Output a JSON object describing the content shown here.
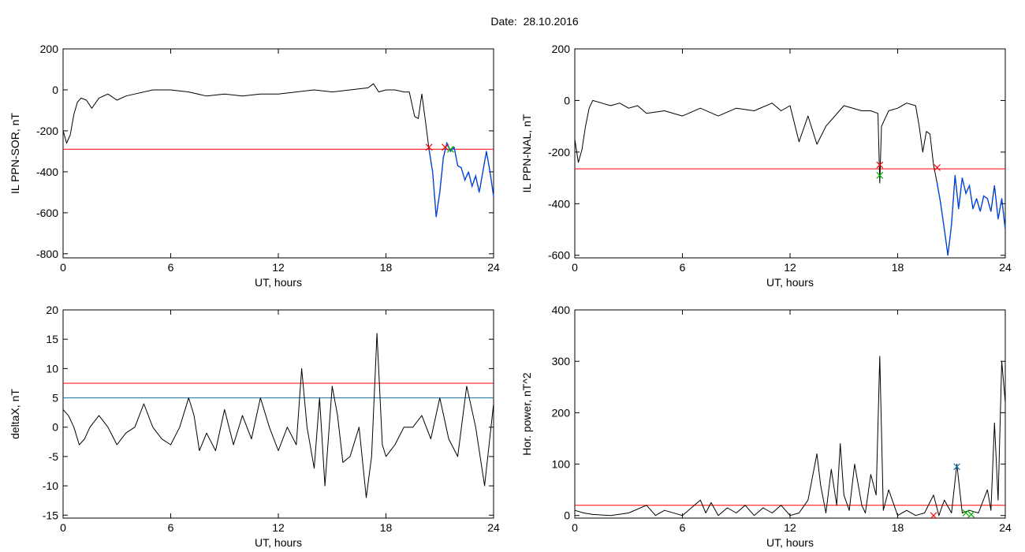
{
  "title": "Date:  28.10.2016",
  "colors": {
    "data": "#000000",
    "threshold_red": "#ff0000",
    "threshold_blue": "#1f77b4",
    "highlight": "#0050ff",
    "marker_green": "#00b000"
  },
  "chart_data": [
    {
      "type": "line",
      "xlabel": "UT, hours",
      "ylabel": "IL PPN-SOR, nT",
      "xlim": [
        0,
        24
      ],
      "ylim": [
        -820,
        200
      ],
      "xticks": [
        0,
        6,
        12,
        18,
        24
      ],
      "yticks": [
        -800,
        -600,
        -400,
        -200,
        0,
        200
      ],
      "yticklabels": [
        "-800",
        "-600",
        "-400",
        "-200",
        "0",
        "200"
      ],
      "hlines": [
        {
          "y": -290,
          "color": "red"
        }
      ],
      "series": [
        {
          "x": [
            0,
            0.2,
            0.4,
            0.6,
            0.8,
            1,
            1.3,
            1.6,
            2,
            2.5,
            3,
            3.5,
            4,
            5,
            6,
            7,
            8,
            9,
            10,
            11,
            12,
            13,
            14,
            15,
            16,
            17,
            17.3,
            17.6,
            18,
            18.5,
            19,
            19.3,
            19.6,
            19.8,
            20,
            20.2,
            20.4,
            20.6,
            20.8,
            21,
            21.2,
            21.4,
            21.6,
            21.8,
            22,
            22.2,
            22.4,
            22.6,
            22.8,
            23,
            23.2,
            23.4,
            23.6,
            23.8,
            24
          ],
          "y": [
            -200,
            -260,
            -220,
            -120,
            -60,
            -40,
            -50,
            -90,
            -40,
            -20,
            -50,
            -30,
            -20,
            0,
            0,
            -10,
            -30,
            -20,
            -30,
            -20,
            -20,
            -10,
            0,
            -10,
            0,
            10,
            30,
            -10,
            0,
            0,
            -10,
            -10,
            -130,
            -140,
            -20,
            -150,
            -290,
            -400,
            -620,
            -500,
            -330,
            -260,
            -300,
            -280,
            -370,
            -380,
            -440,
            -400,
            -470,
            -420,
            -500,
            -400,
            -300,
            -400,
            -520
          ]
        }
      ],
      "highlight": {
        "x_from": 20.4,
        "color": "blue"
      },
      "markers": [
        {
          "x": 20.4,
          "y": -280,
          "color": "red"
        },
        {
          "x": 21.3,
          "y": -280,
          "color": "red"
        },
        {
          "x": 21.6,
          "y": -290,
          "color": "green"
        }
      ]
    },
    {
      "type": "line",
      "xlabel": "UT, hours",
      "ylabel": "IL PPN-NAL, nT",
      "xlim": [
        0,
        24
      ],
      "ylim": [
        -610,
        200
      ],
      "xticks": [
        0,
        6,
        12,
        18,
        24
      ],
      "yticks": [
        -600,
        -400,
        -200,
        0,
        200
      ],
      "yticklabels": [
        "-600",
        "-400",
        "-200",
        "0",
        "200"
      ],
      "hlines": [
        {
          "y": -265,
          "color": "red"
        }
      ],
      "series": [
        {
          "x": [
            0,
            0.2,
            0.4,
            0.6,
            0.8,
            1,
            1.5,
            2,
            2.5,
            3,
            3.5,
            4,
            5,
            6,
            7,
            8,
            9,
            10,
            11,
            11.5,
            12,
            12.5,
            13,
            13.5,
            14,
            15,
            16,
            16.5,
            16.9,
            17,
            17.1,
            17.5,
            18,
            18.5,
            19,
            19.2,
            19.4,
            19.6,
            19.8,
            20,
            20.2,
            20.4,
            20.6,
            20.8,
            21,
            21.2,
            21.4,
            21.6,
            21.8,
            22,
            22.2,
            22.4,
            22.6,
            22.8,
            23,
            23.2,
            23.4,
            23.6,
            23.8,
            24
          ],
          "y": [
            -150,
            -240,
            -190,
            -100,
            -30,
            0,
            -10,
            -20,
            -10,
            -30,
            -20,
            -50,
            -40,
            -60,
            -30,
            -60,
            -30,
            -40,
            -10,
            -40,
            -20,
            -160,
            -60,
            -170,
            -100,
            -20,
            -40,
            -40,
            -50,
            -320,
            -100,
            -40,
            -30,
            -10,
            -20,
            -100,
            -200,
            -120,
            -130,
            -250,
            -320,
            -400,
            -500,
            -600,
            -480,
            -290,
            -420,
            -300,
            -360,
            -330,
            -420,
            -380,
            -430,
            -370,
            -380,
            -430,
            -330,
            -460,
            -380,
            -500
          ]
        }
      ],
      "highlight": {
        "x_from": 20.2,
        "color": "blue"
      },
      "markers": [
        {
          "x": 17.0,
          "y": -250,
          "color": "red"
        },
        {
          "x": 17.0,
          "y": -290,
          "color": "green"
        },
        {
          "x": 20.2,
          "y": -260,
          "color": "red"
        }
      ]
    },
    {
      "type": "line",
      "xlabel": "UT, hours",
      "ylabel": "deltaX, nT",
      "xlim": [
        0,
        24
      ],
      "ylim": [
        -15.5,
        20
      ],
      "xticks": [
        0,
        6,
        12,
        18,
        24
      ],
      "yticks": [
        -15,
        -10,
        -5,
        0,
        5,
        10,
        15,
        20
      ],
      "yticklabels": [
        "-15",
        "-10",
        "-5",
        "0",
        "5",
        "10",
        "15",
        "20"
      ],
      "hlines": [
        {
          "y": 7.5,
          "color": "red"
        },
        {
          "y": 5.0,
          "color": "blue"
        }
      ],
      "series": [
        {
          "x": [
            0,
            0.3,
            0.6,
            0.9,
            1.2,
            1.5,
            2,
            2.5,
            3,
            3.5,
            4,
            4.5,
            5,
            5.5,
            6,
            6.5,
            7,
            7.3,
            7.6,
            8,
            8.5,
            9,
            9.5,
            10,
            10.5,
            11,
            11.5,
            12,
            12.5,
            13,
            13.3,
            13.6,
            14,
            14.3,
            14.6,
            15,
            15.3,
            15.6,
            16,
            16.5,
            16.9,
            17.2,
            17.5,
            17.8,
            18,
            18.5,
            19,
            19.5,
            20,
            20.5,
            21,
            21.5,
            22,
            22.5,
            23,
            23.5,
            24
          ],
          "y": [
            3,
            2,
            0,
            -3,
            -2,
            0,
            2,
            0,
            -3,
            -1,
            0,
            4,
            0,
            -2,
            -3,
            0,
            5,
            2,
            -4,
            -1,
            -4,
            3,
            -3,
            2,
            -2,
            5,
            0,
            -4,
            0,
            -3,
            10,
            0,
            -7,
            5,
            -10,
            7,
            2,
            -6,
            -5,
            0,
            -12,
            -5,
            16,
            -3,
            -5,
            -3,
            0,
            0,
            2,
            -2,
            5,
            -2,
            -5,
            7,
            0,
            -10,
            4
          ]
        }
      ]
    },
    {
      "type": "line",
      "xlabel": "UT, hours",
      "ylabel": "Hor. power, nT^2",
      "xlim": [
        0,
        24
      ],
      "ylim": [
        -5,
        400
      ],
      "xticks": [
        0,
        6,
        12,
        18,
        24
      ],
      "yticks": [
        0,
        100,
        200,
        300,
        400
      ],
      "yticklabels": [
        "0",
        "100",
        "200",
        "300",
        "400"
      ],
      "hlines": [
        {
          "y": 20,
          "color": "red"
        }
      ],
      "series": [
        {
          "x": [
            0,
            0.5,
            1,
            2,
            3,
            4,
            4.5,
            5,
            6,
            7,
            7.3,
            7.6,
            8,
            8.5,
            9,
            9.5,
            10,
            10.5,
            11,
            11.5,
            12,
            12.5,
            13,
            13.5,
            13.7,
            14,
            14.3,
            14.6,
            14.8,
            15,
            15.3,
            15.6,
            16,
            16.2,
            16.5,
            16.8,
            17,
            17.2,
            17.5,
            18,
            18.5,
            19,
            19.5,
            20,
            20.3,
            20.6,
            21,
            21.3,
            21.6,
            22,
            22.5,
            23,
            23.2,
            23.4,
            23.6,
            23.8,
            24
          ],
          "y": [
            10,
            5,
            2,
            0,
            5,
            20,
            0,
            10,
            0,
            30,
            5,
            25,
            0,
            15,
            5,
            20,
            0,
            15,
            5,
            20,
            0,
            5,
            30,
            120,
            60,
            5,
            90,
            20,
            140,
            40,
            10,
            100,
            20,
            5,
            80,
            40,
            310,
            10,
            50,
            0,
            10,
            0,
            5,
            40,
            0,
            30,
            5,
            100,
            5,
            10,
            5,
            50,
            10,
            180,
            30,
            300,
            220
          ]
        }
      ],
      "markers": [
        {
          "x": 20.0,
          "y": 0,
          "color": "red"
        },
        {
          "x": 21.3,
          "y": 95,
          "color": "blue"
        },
        {
          "x": 21.8,
          "y": 5,
          "color": "green"
        },
        {
          "x": 22.1,
          "y": 2,
          "color": "green"
        }
      ]
    }
  ]
}
